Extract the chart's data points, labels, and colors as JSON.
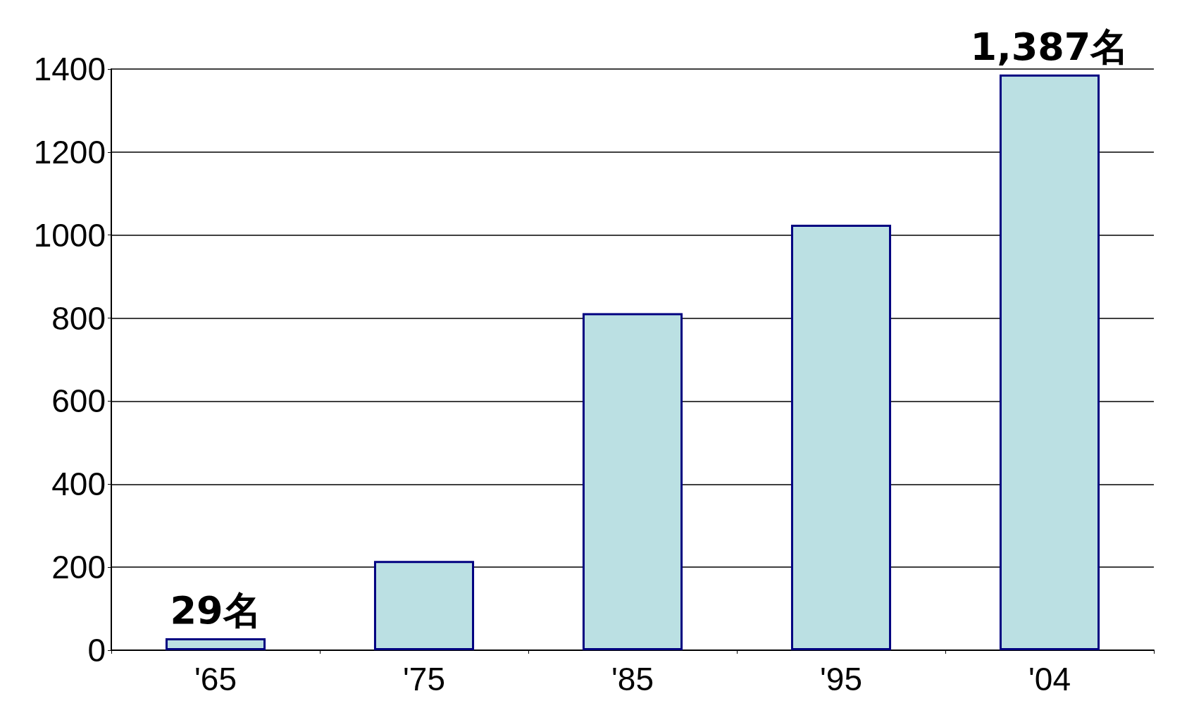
{
  "chart_data": {
    "type": "bar",
    "categories": [
      "'65",
      "'75",
      "'85",
      "'95",
      "'04"
    ],
    "values": [
      29,
      215,
      812,
      1025,
      1387
    ],
    "value_labels": [
      "29名",
      null,
      null,
      null,
      "1,387名"
    ],
    "color": "#bbe0e3",
    "ylim": [
      0,
      1400
    ],
    "yticks": [
      0,
      200,
      400,
      600,
      800,
      1000,
      1200,
      1400
    ],
    "grid": "y"
  }
}
